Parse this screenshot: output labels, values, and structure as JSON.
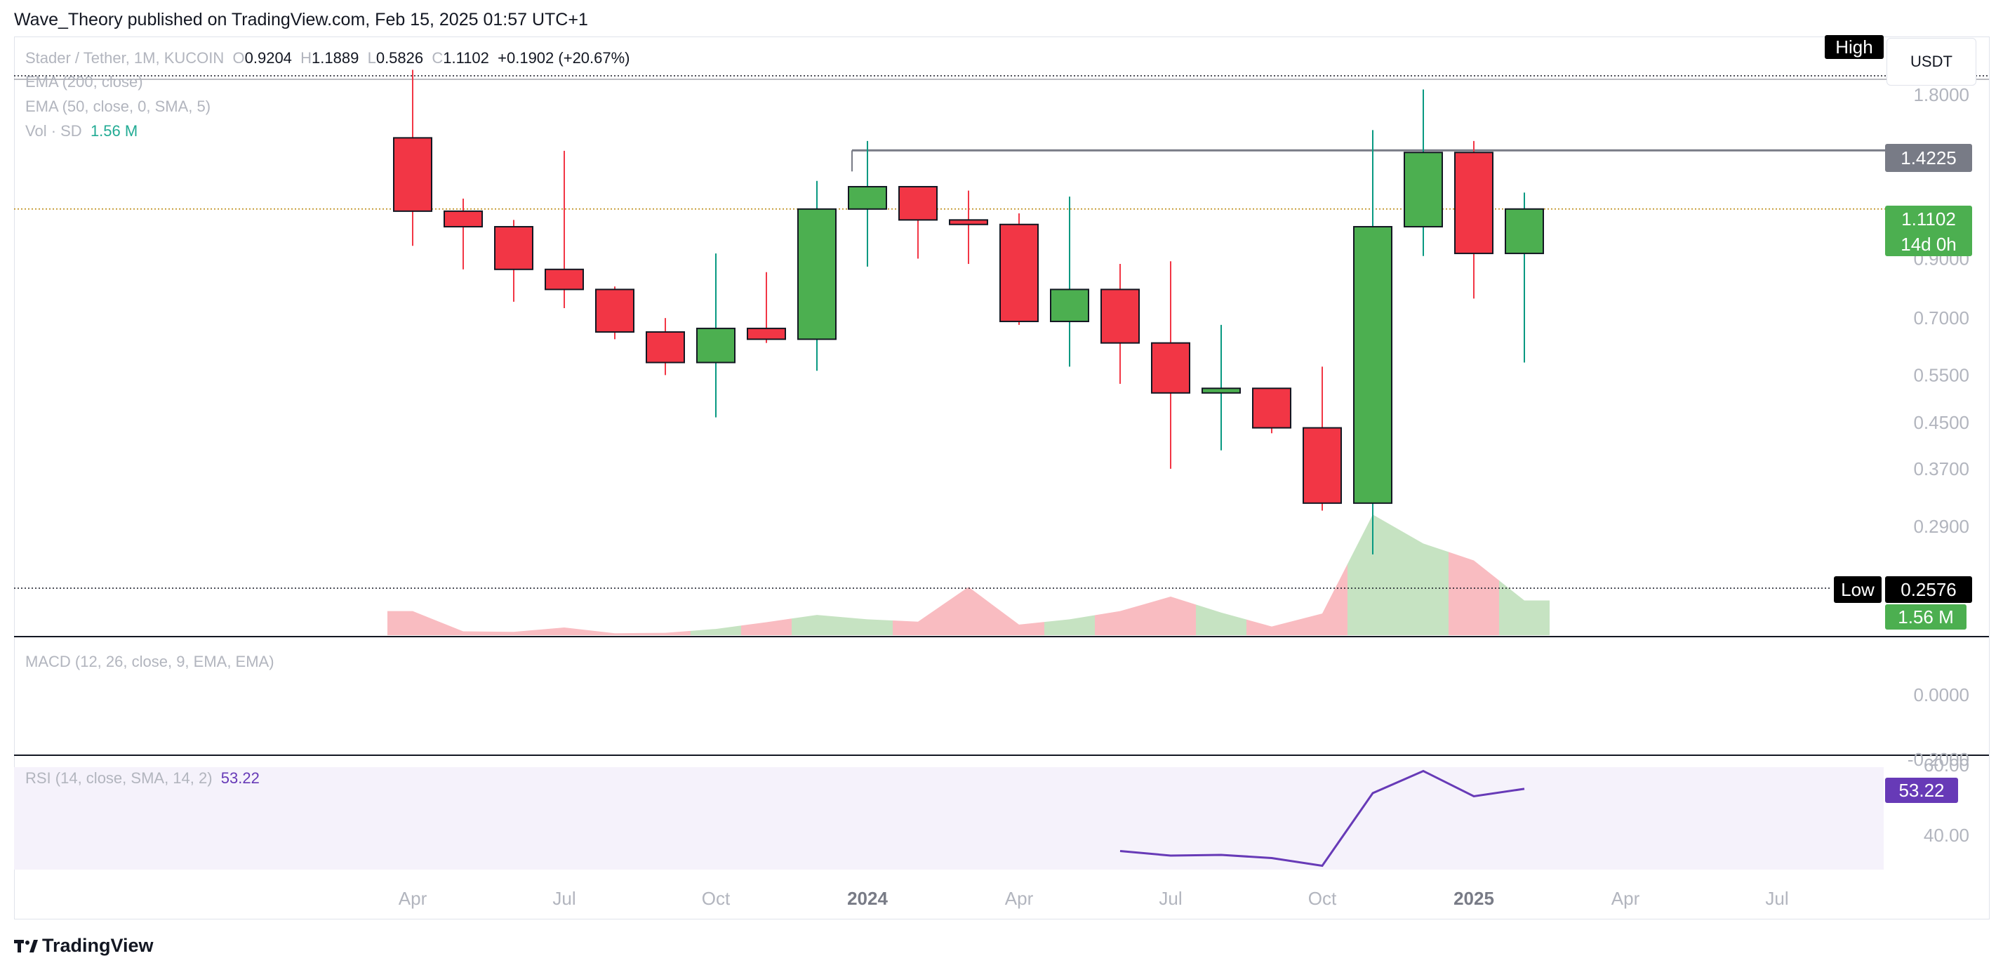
{
  "publisher_line": "Wave_Theory published on TradingView.com, Feb 15, 2025 01:57 UTC+1",
  "symbol": {
    "name": "Stader / Tether, 1M, KUCOIN",
    "o_label": "O",
    "o": "0.9204",
    "h_label": "H",
    "h": "1.1889",
    "l_label": "L",
    "l": "0.5826",
    "c_label": "C",
    "c": "1.1102",
    "change": "+0.1902 (+20.67%)"
  },
  "indicators": {
    "ema200": "EMA (200, close)",
    "ema50": "EMA (50, close, 0, SMA, 5)",
    "vol_label": "Vol · SD",
    "vol_value": "1.56 M",
    "macd": "MACD (12, 26, close, 9, EMA, EMA)",
    "rsi_label": "RSI (14, close, SMA, 14, 2)",
    "rsi_value": "53.22"
  },
  "currency": "USDT",
  "price_axis": [
    "1.8000",
    "0.9000",
    "0.7000",
    "0.5500",
    "0.4500",
    "0.3700",
    "0.2900"
  ],
  "macd_axis": [
    "0.0000",
    "-0.2000"
  ],
  "rsi_axis": [
    "60.00",
    "40.00"
  ],
  "tags": {
    "high_label": "High",
    "level_1": "1.4225",
    "last_price": "1.1102",
    "countdown": "14d 0h",
    "low_label": "Low",
    "low_price": "0.2576",
    "volume": "1.56 M",
    "rsi": "53.22"
  },
  "time_axis": [
    {
      "label": "Apr",
      "bold": false
    },
    {
      "label": "Jul",
      "bold": false
    },
    {
      "label": "Oct",
      "bold": false
    },
    {
      "label": "2024",
      "bold": true
    },
    {
      "label": "Apr",
      "bold": false
    },
    {
      "label": "Jul",
      "bold": false
    },
    {
      "label": "Oct",
      "bold": false
    },
    {
      "label": "2025",
      "bold": true
    },
    {
      "label": "Apr",
      "bold": false
    },
    {
      "label": "Jul",
      "bold": false
    }
  ],
  "footer_brand": "TradingView",
  "colors": {
    "up": "#4caf50",
    "down": "#f23645",
    "up_wick": "#089981",
    "vol_up": "#c6e3c2",
    "vol_down": "#f9bcc1",
    "rsi_line": "#673ab7",
    "rsi_bg": "#f5f2fb",
    "axis_text": "#b2b5be"
  },
  "chart_data": {
    "type": "candlestick",
    "title": "Stader / Tether, 1M, KUCOIN",
    "x": [
      "2023-04",
      "2023-05",
      "2023-06",
      "2023-07",
      "2023-08",
      "2023-09",
      "2023-10",
      "2023-11",
      "2023-12",
      "2024-01",
      "2024-02",
      "2024-03",
      "2024-04",
      "2024-05",
      "2024-06",
      "2024-07",
      "2024-08",
      "2024-09",
      "2024-10",
      "2024-11",
      "2024-12",
      "2025-01",
      "2025-02"
    ],
    "open": [
      1.5,
      1.1,
      1.03,
      0.86,
      0.79,
      0.66,
      0.58,
      0.67,
      0.64,
      1.11,
      1.22,
      1.06,
      1.04,
      0.69,
      0.79,
      0.63,
      0.51,
      0.52,
      0.44,
      0.32,
      1.03,
      1.41,
      0.92
    ],
    "high": [
      2.0,
      1.16,
      1.06,
      1.42,
      0.8,
      0.7,
      0.92,
      0.85,
      1.25,
      1.48,
      1.22,
      1.2,
      1.09,
      1.17,
      0.88,
      0.89,
      0.68,
      0.52,
      0.57,
      1.55,
      1.84,
      1.48,
      1.19
    ],
    "low": [
      0.95,
      0.86,
      0.75,
      0.73,
      0.64,
      0.55,
      0.46,
      0.63,
      0.56,
      0.87,
      0.9,
      0.88,
      0.68,
      0.57,
      0.53,
      0.37,
      0.4,
      0.43,
      0.31,
      0.2576,
      0.91,
      0.76,
      0.58
    ],
    "close": [
      1.1,
      1.03,
      0.86,
      0.79,
      0.66,
      0.58,
      0.67,
      0.64,
      1.11,
      1.22,
      1.06,
      1.04,
      0.69,
      0.79,
      0.63,
      0.51,
      0.52,
      0.44,
      0.32,
      1.03,
      1.41,
      0.92,
      1.1102
    ],
    "volume_relative": [
      0.5,
      0.08,
      0.07,
      0.16,
      0.04,
      0.05,
      0.13,
      0.27,
      0.42,
      0.33,
      0.28,
      1.0,
      0.22,
      0.33,
      0.5,
      0.8,
      0.47,
      0.18,
      0.45,
      2.5,
      1.9,
      1.55,
      0.72
    ],
    "rsi": {
      "x_start": "2024-06",
      "values": [
        35.5,
        34.2,
        34.4,
        33.5,
        31.3,
        52.0,
        58.3,
        51.1,
        53.22
      ]
    },
    "price_levels": {
      "high": 1.8925,
      "resistance": 1.4225,
      "last": 1.1102,
      "low": 0.2576
    },
    "scale": "log",
    "price_range": [
      0.25,
      1.95
    ],
    "rsi_range": [
      30,
      62
    ]
  }
}
